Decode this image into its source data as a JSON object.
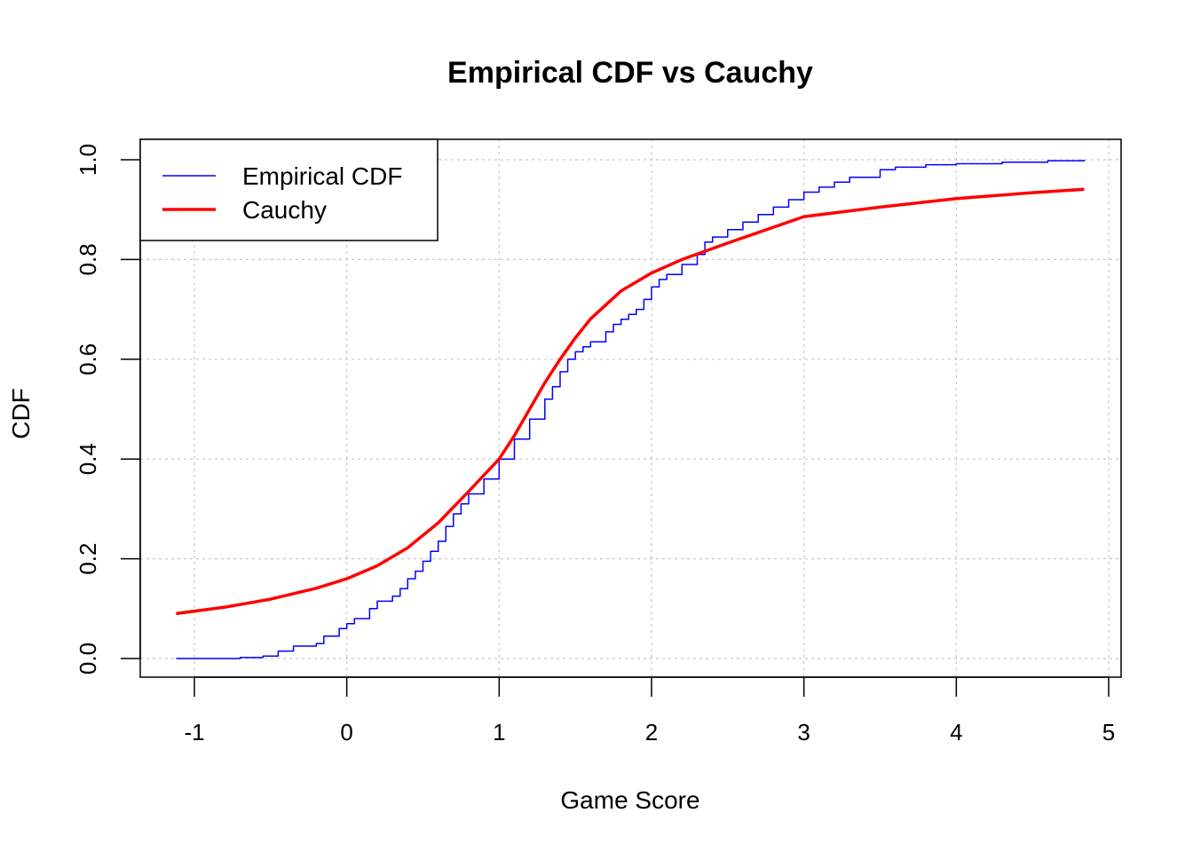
{
  "chart_data": {
    "type": "line",
    "title": "Empirical CDF vs Cauchy",
    "xlabel": "Game Score",
    "ylabel": "CDF",
    "xlim": [
      -1.12,
      4.84
    ],
    "ylim": [
      0,
      1
    ],
    "x_ticks": [
      -1,
      0,
      1,
      2,
      3,
      4,
      5
    ],
    "y_ticks": [
      0.0,
      0.2,
      0.4,
      0.6,
      0.8,
      1.0
    ],
    "x_tick_labels": [
      "-1",
      "0",
      "1",
      "2",
      "3",
      "4",
      "5"
    ],
    "y_tick_labels": [
      "0.0",
      "0.2",
      "0.4",
      "0.6",
      "0.8",
      "1.0"
    ],
    "grid": true,
    "legend_position": "top-left",
    "series": [
      {
        "name": "Empirical CDF",
        "color": "#0000ff",
        "style": "step",
        "x": [
          -1.12,
          -0.7,
          -0.55,
          -0.45,
          -0.35,
          -0.2,
          -0.15,
          -0.05,
          0.0,
          0.05,
          0.15,
          0.2,
          0.3,
          0.35,
          0.4,
          0.45,
          0.5,
          0.55,
          0.6,
          0.65,
          0.7,
          0.75,
          0.8,
          0.9,
          1.0,
          1.1,
          1.2,
          1.3,
          1.35,
          1.4,
          1.45,
          1.5,
          1.55,
          1.6,
          1.7,
          1.75,
          1.8,
          1.85,
          1.9,
          1.95,
          2.0,
          2.05,
          2.1,
          2.2,
          2.3,
          2.35,
          2.4,
          2.5,
          2.6,
          2.7,
          2.8,
          2.9,
          3.0,
          3.1,
          3.2,
          3.3,
          3.5,
          3.6,
          3.8,
          4.0,
          4.3,
          4.6,
          4.84
        ],
        "y": [
          0.0,
          0.002,
          0.005,
          0.015,
          0.025,
          0.03,
          0.045,
          0.06,
          0.07,
          0.08,
          0.1,
          0.115,
          0.125,
          0.14,
          0.16,
          0.175,
          0.195,
          0.215,
          0.235,
          0.265,
          0.29,
          0.31,
          0.33,
          0.36,
          0.4,
          0.44,
          0.48,
          0.52,
          0.545,
          0.575,
          0.6,
          0.615,
          0.625,
          0.635,
          0.655,
          0.67,
          0.68,
          0.69,
          0.7,
          0.72,
          0.745,
          0.76,
          0.77,
          0.79,
          0.81,
          0.835,
          0.845,
          0.86,
          0.875,
          0.89,
          0.905,
          0.92,
          0.935,
          0.945,
          0.955,
          0.965,
          0.98,
          0.985,
          0.99,
          0.992,
          0.995,
          0.998,
          1.0
        ]
      },
      {
        "name": "Cauchy",
        "color": "#ff0000",
        "style": "line",
        "x": [
          -1.12,
          -0.8,
          -0.5,
          -0.2,
          0.0,
          0.2,
          0.4,
          0.6,
          0.8,
          1.0,
          1.1,
          1.2,
          1.3,
          1.4,
          1.5,
          1.6,
          1.8,
          2.0,
          2.2,
          2.5,
          3.0,
          3.5,
          4.0,
          4.5,
          4.84
        ],
        "y": [
          0.09,
          0.103,
          0.119,
          0.141,
          0.16,
          0.186,
          0.222,
          0.272,
          0.335,
          0.4,
          0.447,
          0.5,
          0.553,
          0.6,
          0.643,
          0.681,
          0.737,
          0.773,
          0.8,
          0.833,
          0.886,
          0.905,
          0.922,
          0.934,
          0.941
        ]
      }
    ]
  }
}
